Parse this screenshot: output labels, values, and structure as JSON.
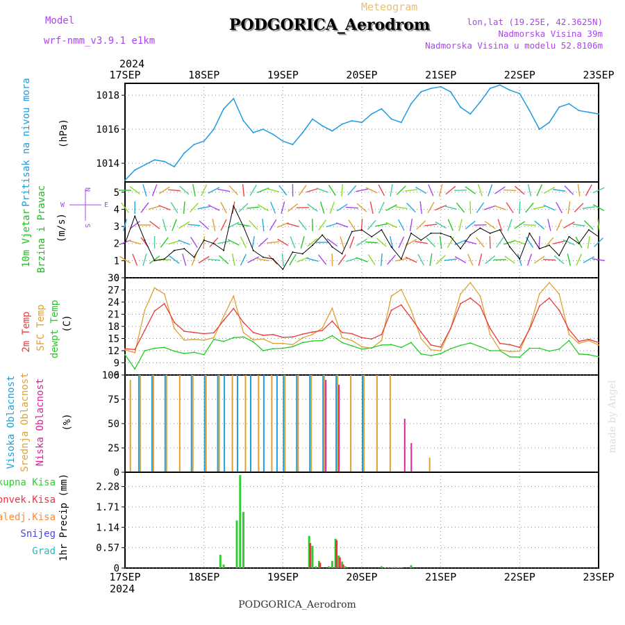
{
  "header": {
    "model_label": "Model",
    "model_name": "wrf-nmm_v3.9.1 e1km",
    "title": "PODGORICA_Aerodrom",
    "subtitle": "Meteogram",
    "lonlat": "lon,lat (19.25E, 42.3625N)",
    "elevation": "Nadmorska Visina 39m",
    "model_elevation": "Nadmorska Visina u modelu 52.8106m"
  },
  "time_axis": {
    "year": "2024",
    "ticks": [
      "17SEP",
      "18SEP",
      "19SEP",
      "20SEP",
      "21SEP",
      "22SEP",
      "23SEP"
    ]
  },
  "footer": {
    "station": "PODGORICA_Aerodrom",
    "credit": "made by Angel"
  },
  "colors": {
    "pressure": "#1e9be0",
    "wind_axis_label": "#22bb22",
    "temp2m": "#e83a3a",
    "sfc_temp": "#e0a030",
    "dewpt": "#22cc22",
    "high_cloud": "#1ea0e0",
    "mid_cloud": "#e0a030",
    "low_cloud": "#dd2299",
    "total_precip": "#33cc33",
    "conv_precip": "#ee3344",
    "frz_precip": "#ff8833",
    "snow": "#4444ee",
    "hail": "#22bbbb",
    "compass": "#aa44ee"
  },
  "chart_data": [
    {
      "type": "line",
      "panel": "pressure",
      "ylabel": [
        "Pritisak na nivou mora",
        "(hPa)"
      ],
      "ylim": [
        1012.9,
        1018.7
      ],
      "yticks": [
        1014,
        1016,
        1018
      ],
      "grid": true,
      "x_unit": "hours since 17SEP 00 UTC",
      "series": [
        {
          "x": [
            0,
            3,
            6,
            9,
            12,
            15,
            18,
            21,
            24,
            27,
            30,
            33,
            36,
            39,
            42,
            45,
            48,
            51,
            54,
            57,
            60,
            63,
            66,
            69,
            72,
            75,
            78,
            81,
            84,
            87,
            90,
            93,
            96,
            99,
            102,
            105,
            108,
            111,
            114,
            117,
            120,
            123,
            126,
            129,
            132,
            135,
            138,
            141,
            144
          ],
          "values": [
            1013.0,
            1013.6,
            1013.9,
            1014.2,
            1014.1,
            1013.8,
            1014.6,
            1015.1,
            1015.3,
            1016.0,
            1017.2,
            1017.8,
            1016.5,
            1015.8,
            1016.0,
            1015.7,
            1015.3,
            1015.1,
            1015.8,
            1016.6,
            1016.2,
            1015.9,
            1016.3,
            1016.5,
            1016.4,
            1016.9,
            1017.2,
            1016.6,
            1016.4,
            1017.5,
            1018.2,
            1018.4,
            1018.5,
            1018.2,
            1017.3,
            1016.9,
            1017.6,
            1018.4,
            1018.6,
            1018.3,
            1018.1,
            1017.1,
            1016.0,
            1016.4,
            1017.3,
            1017.5,
            1017.1,
            1017.0,
            1016.9
          ]
        }
      ]
    },
    {
      "type": "line",
      "panel": "wind",
      "ylabel": [
        "10m Vjetar",
        "Brzina i Pravac",
        "(m/s)"
      ],
      "ylim": [
        0,
        5.6
      ],
      "yticks": [
        0,
        1,
        2,
        3,
        4,
        5
      ],
      "compass_legend": {
        "north": "N",
        "west": "W",
        "east": "E",
        "south": "S"
      },
      "grid": true,
      "series": [
        {
          "x": [
            0,
            3,
            6,
            9,
            12,
            15,
            18,
            21,
            24,
            27,
            30,
            33,
            36,
            39,
            42,
            45,
            48,
            51,
            54,
            57,
            60,
            63,
            66,
            69,
            72,
            75,
            78,
            81,
            84,
            87,
            90,
            93,
            96,
            99,
            102,
            105,
            108,
            111,
            114,
            117,
            120,
            123,
            126,
            129,
            132,
            135,
            138,
            141,
            144
          ],
          "values": [
            2.0,
            3.6,
            2.2,
            1.0,
            1.1,
            1.6,
            1.7,
            1.2,
            2.2,
            2.0,
            1.6,
            4.2,
            3.0,
            1.6,
            1.2,
            1.1,
            0.5,
            1.5,
            1.4,
            1.9,
            2.5,
            1.8,
            1.4,
            2.7,
            2.8,
            2.4,
            2.8,
            1.8,
            1.1,
            2.6,
            2.2,
            2.6,
            2.6,
            2.4,
            1.7,
            2.5,
            2.9,
            2.6,
            2.8,
            1.8,
            1.1,
            2.6,
            1.7,
            1.9,
            1.3,
            2.4,
            2.0,
            2.8,
            2.4
          ]
        }
      ]
    },
    {
      "type": "line",
      "panel": "temperature",
      "ylabel": [
        "2m Temp",
        "SFC Temp",
        "dewpt Temp",
        "(C)"
      ],
      "ylim": [
        6,
        30
      ],
      "yticks": [
        6,
        9,
        12,
        15,
        18,
        21,
        24,
        27,
        30
      ],
      "grid": true,
      "series": [
        {
          "name": "2m Temp",
          "x": [
            0,
            3,
            6,
            9,
            12,
            15,
            18,
            21,
            24,
            27,
            30,
            33,
            36,
            39,
            42,
            45,
            48,
            51,
            54,
            57,
            60,
            63,
            66,
            69,
            72,
            75,
            78,
            81,
            84,
            87,
            90,
            93,
            96,
            99,
            102,
            105,
            108,
            111,
            114,
            117,
            120,
            123,
            126,
            129,
            132,
            135,
            138,
            141,
            144
          ],
          "values": [
            12.5,
            12.3,
            17.0,
            21.8,
            23.6,
            19.0,
            16.8,
            16.5,
            16.2,
            16.4,
            19.5,
            22.4,
            19.0,
            16.5,
            15.8,
            16.0,
            15.3,
            15.4,
            16.1,
            16.6,
            17.0,
            19.3,
            16.5,
            16.2,
            15.2,
            14.9,
            16.0,
            22.0,
            23.3,
            20.1,
            16.6,
            13.4,
            12.9,
            17.5,
            23.6,
            25.0,
            23.0,
            17.5,
            13.8,
            13.5,
            12.8,
            17.3,
            23.0,
            25.0,
            22.0,
            17.2,
            14.3,
            14.8,
            14.0
          ]
        },
        {
          "name": "SFC Temp",
          "x": [
            0,
            3,
            6,
            9,
            12,
            15,
            18,
            21,
            24,
            27,
            30,
            33,
            36,
            39,
            42,
            45,
            48,
            51,
            54,
            57,
            60,
            63,
            66,
            69,
            72,
            75,
            78,
            81,
            84,
            87,
            90,
            93,
            96,
            99,
            102,
            105,
            108,
            111,
            114,
            117,
            120,
            123,
            126,
            129,
            132,
            135,
            138,
            141,
            144
          ],
          "values": [
            12.2,
            11.5,
            22.0,
            27.5,
            26.0,
            17.5,
            14.6,
            14.8,
            14.6,
            15.2,
            20.5,
            25.5,
            16.5,
            14.7,
            14.9,
            13.8,
            13.8,
            13.5,
            15.2,
            16.0,
            17.6,
            22.5,
            15.2,
            14.5,
            13.0,
            12.6,
            14.5,
            25.5,
            27.1,
            22.0,
            15.0,
            12.2,
            12.0,
            17.5,
            26.0,
            28.8,
            25.5,
            16.0,
            12.2,
            11.8,
            11.9,
            17.5,
            26.0,
            28.8,
            26.0,
            16.0,
            13.8,
            14.5,
            13.4
          ]
        },
        {
          "name": "dewpt Temp",
          "x": [
            0,
            3,
            6,
            9,
            12,
            15,
            18,
            21,
            24,
            27,
            30,
            33,
            36,
            39,
            42,
            45,
            48,
            51,
            54,
            57,
            60,
            63,
            66,
            69,
            72,
            75,
            78,
            81,
            84,
            87,
            90,
            93,
            96,
            99,
            102,
            105,
            108,
            111,
            114,
            117,
            120,
            123,
            126,
            129,
            132,
            135,
            138,
            141,
            144
          ],
          "values": [
            11.0,
            7.5,
            12.0,
            12.6,
            12.8,
            11.9,
            11.3,
            11.6,
            11.0,
            14.8,
            14.3,
            15.2,
            15.4,
            14.2,
            12.0,
            12.5,
            12.6,
            13.0,
            14.0,
            14.4,
            14.5,
            15.7,
            14.0,
            13.2,
            12.4,
            12.7,
            13.4,
            13.5,
            12.8,
            14.0,
            11.2,
            10.8,
            11.3,
            12.5,
            13.3,
            13.9,
            13.0,
            12.0,
            12.0,
            10.5,
            10.4,
            12.6,
            12.6,
            11.9,
            12.4,
            14.5,
            11.2,
            11.0,
            10.5
          ]
        }
      ]
    },
    {
      "type": "bar",
      "panel": "cloud_cover",
      "ylabel": [
        "Visoka Oblacnost",
        "Srednja Oblacnost",
        "Niska Oblacnost",
        "(%)"
      ],
      "ylim": [
        0,
        100
      ],
      "yticks": [
        0,
        25,
        50,
        75,
        100
      ],
      "grid": true,
      "series": [
        {
          "name": "Visoka Oblacnost",
          "x": [
            0,
            4,
            8,
            12,
            16,
            20,
            24,
            28,
            30,
            34,
            38,
            42,
            46,
            48,
            52,
            56,
            60,
            64,
            68,
            72,
            76,
            80,
            84,
            88,
            92,
            96,
            120,
            144
          ],
          "values": [
            0,
            100,
            100,
            100,
            0,
            100,
            100,
            100,
            100,
            100,
            100,
            100,
            100,
            100,
            100,
            100,
            100,
            100,
            0,
            100,
            0,
            0,
            0,
            0,
            0,
            0,
            0,
            0
          ]
        },
        {
          "name": "Srednja Oblacnost",
          "x": [
            0,
            1,
            4,
            8,
            12,
            16,
            20,
            24,
            28,
            32,
            36,
            40,
            44,
            48,
            52,
            56,
            60,
            64,
            68,
            72,
            76,
            80,
            84,
            88,
            92,
            96,
            120,
            144
          ],
          "values": [
            0,
            95,
            100,
            100,
            100,
            100,
            100,
            100,
            100,
            100,
            100,
            100,
            100,
            100,
            100,
            100,
            100,
            100,
            100,
            100,
            100,
            100,
            0,
            0,
            15,
            0,
            0,
            0
          ]
        },
        {
          "name": "Niska Oblacnost",
          "x": [
            0,
            36,
            52,
            60,
            64,
            84,
            86,
            88,
            96,
            120,
            144
          ],
          "values": [
            0,
            0,
            0,
            95,
            90,
            55,
            30,
            0,
            0,
            0,
            0
          ]
        }
      ]
    },
    {
      "type": "bar",
      "panel": "precipitation",
      "ylabel": [
        "1hr Precip (mm)"
      ],
      "legend": [
        "Ukupna Kisa",
        "Konvek.Kisa",
        "Zaledj.Kisa",
        "Snijeg",
        "Grad"
      ],
      "ylim": [
        0,
        2.68
      ],
      "yticks": [
        0,
        0.57,
        1.14,
        1.71,
        2.28
      ],
      "grid": true,
      "series": [
        {
          "name": "Ukupna Kisa",
          "x": [
            29,
            30,
            34,
            35,
            36,
            56,
            57,
            58,
            59,
            62,
            63,
            64,
            65,
            66,
            67,
            78,
            79,
            80,
            81,
            82,
            83,
            84,
            87
          ],
          "values": [
            0.37,
            0.1,
            1.33,
            2.6,
            1.57,
            0.9,
            0.62,
            0.05,
            0.2,
            0.05,
            0.2,
            0.82,
            0.35,
            0.18,
            0.05,
            0.05,
            0.02,
            0.02,
            0.02,
            0.03,
            0.02,
            0.02,
            0.08
          ]
        },
        {
          "name": "Konvek.Kisa",
          "x": [
            56,
            59,
            64,
            65,
            66,
            81
          ],
          "values": [
            0.7,
            0.15,
            0.78,
            0.3,
            0.1,
            0.02
          ]
        }
      ]
    }
  ]
}
